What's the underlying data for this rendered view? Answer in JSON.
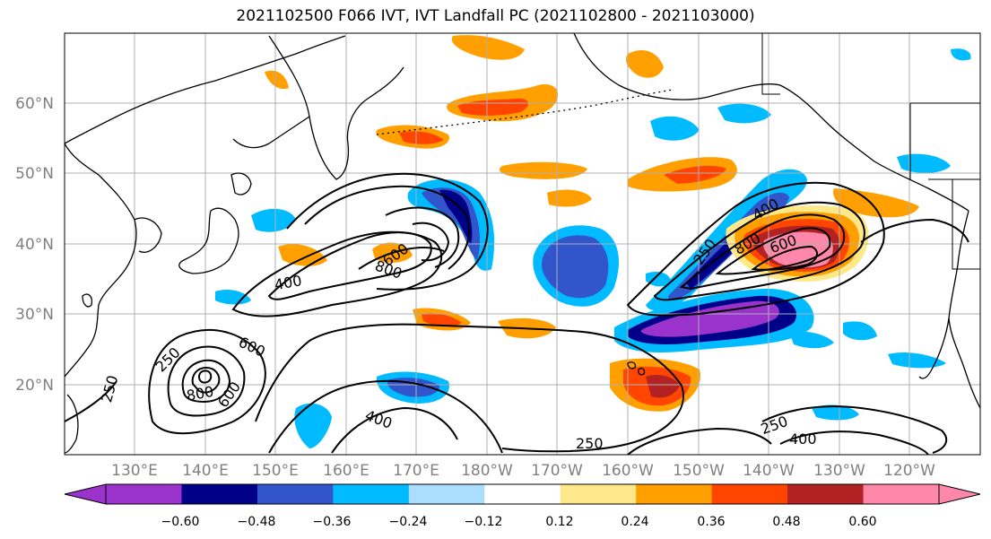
{
  "title": "2021102500 F066 IVT, IVT Landfall PC (2021102800 - 2021103000)",
  "map": {
    "lat_labels": [
      "60°N",
      "50°N",
      "40°N",
      "30°N",
      "20°N"
    ],
    "lon_labels": [
      "130°E",
      "140°E",
      "150°E",
      "160°E",
      "170°E",
      "180°W",
      "170°W",
      "160°W",
      "150°W",
      "140°W",
      "130°W",
      "120°W"
    ],
    "grid": true
  },
  "contours": {
    "labels": [
      "250",
      "400",
      "600",
      "800",
      "250",
      "600",
      "800",
      "600",
      "400",
      "400",
      "250",
      "250",
      "400",
      "800",
      "600",
      "250",
      "800",
      "600"
    ]
  },
  "colorbar": {
    "tick_labels": [
      "−0.60",
      "−0.48",
      "−0.36",
      "−0.24",
      "−0.12",
      "0.12",
      "0.24",
      "0.36",
      "0.48",
      "0.60"
    ],
    "colors": [
      "#9933cc",
      "#000088",
      "#3355cc",
      "#00bbff",
      "#aaddff",
      "#ffffff",
      "#ffe88a",
      "#ffa000",
      "#ff4500",
      "#b22222",
      "#ff88aa",
      "#ff88aa"
    ]
  }
}
